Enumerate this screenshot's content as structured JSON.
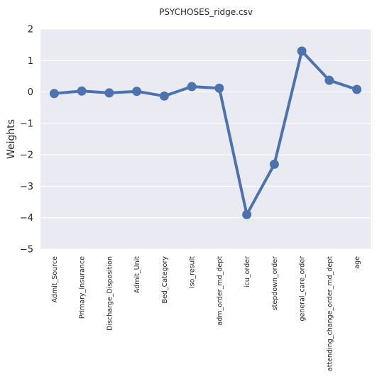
{
  "chart_data": {
    "type": "line",
    "title": "PSYCHOSES_ridge.csv",
    "xlabel": "",
    "ylabel": "Weights",
    "ylim": [
      -5,
      2
    ],
    "yticks": [
      "−5",
      "−4",
      "−3",
      "−2",
      "−1",
      "0",
      "1",
      "2"
    ],
    "grid": true,
    "categories": [
      "Admit_Source",
      "Primary_Insurance",
      "Discharge_Disposition",
      "Admit_Unit",
      "Bed_Category",
      "iso_result",
      "adm_order_md_dept",
      "icu_order",
      "stepdown_order",
      "general_care_order",
      "attending_change_order_md_dept",
      "age"
    ],
    "values": [
      -0.05,
      0.03,
      -0.03,
      0.02,
      -0.13,
      0.17,
      0.12,
      -3.9,
      -2.3,
      1.3,
      0.37,
      0.08
    ],
    "colors": {
      "line": "#4c72b0",
      "background": "#eaeaf2",
      "grid": "#ffffff"
    }
  }
}
